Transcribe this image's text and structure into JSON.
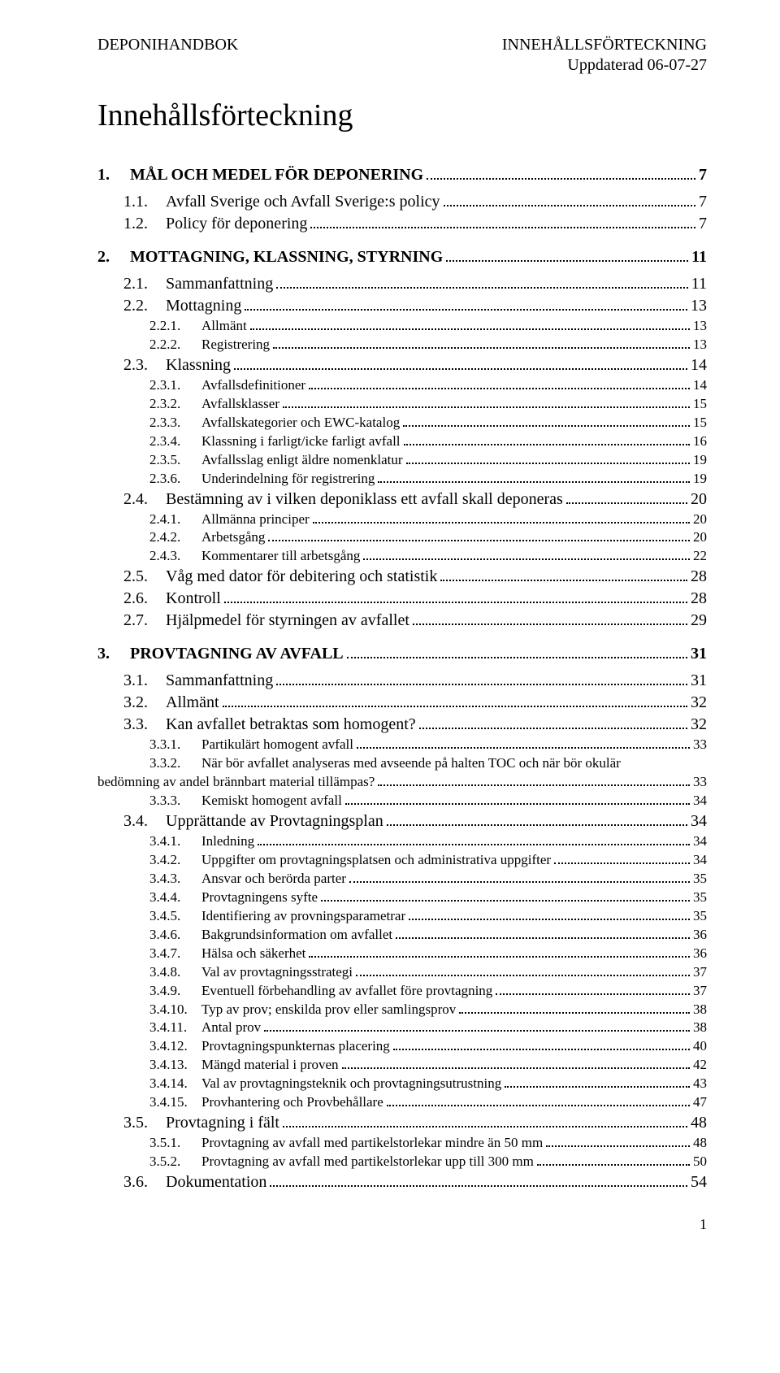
{
  "header": {
    "left": "DEPONIHANDBOK",
    "right": "INNEHÅLLSFÖRTECKNING",
    "sub": "Uppdaterad 06-07-27"
  },
  "title": "Innehållsförteckning",
  "footerPage": "1",
  "toc": [
    {
      "level": 1,
      "num": "1.",
      "text": "MÅL OCH MEDEL FÖR DEPONERING",
      "page": "7"
    },
    {
      "level": 2,
      "num": "1.1.",
      "text": "Avfall Sverige och Avfall Sverige:s policy",
      "page": "7"
    },
    {
      "level": 2,
      "num": "1.2.",
      "text": "Policy för deponering",
      "page": "7"
    },
    {
      "level": 1,
      "num": "2.",
      "text": "MOTTAGNING, KLASSNING, STYRNING",
      "page": "11"
    },
    {
      "level": 2,
      "num": "2.1.",
      "text": "Sammanfattning",
      "page": "11"
    },
    {
      "level": 2,
      "num": "2.2.",
      "text": "Mottagning",
      "page": "13"
    },
    {
      "level": 3,
      "num": "2.2.1.",
      "text": "Allmänt",
      "page": "13"
    },
    {
      "level": 3,
      "num": "2.2.2.",
      "text": "Registrering",
      "page": "13"
    },
    {
      "level": 2,
      "num": "2.3.",
      "text": "Klassning",
      "page": "14"
    },
    {
      "level": 3,
      "num": "2.3.1.",
      "text": "Avfallsdefinitioner",
      "page": "14"
    },
    {
      "level": 3,
      "num": "2.3.2.",
      "text": "Avfallsklasser",
      "page": "15"
    },
    {
      "level": 3,
      "num": "2.3.3.",
      "text": "Avfallskategorier och EWC-katalog",
      "page": "15"
    },
    {
      "level": 3,
      "num": "2.3.4.",
      "text": "Klassning i farligt/icke farligt avfall",
      "page": "16"
    },
    {
      "level": 3,
      "num": "2.3.5.",
      "text": "Avfallsslag enligt äldre nomenklatur",
      "page": "19"
    },
    {
      "level": 3,
      "num": "2.3.6.",
      "text": "Underindelning för registrering",
      "page": "19"
    },
    {
      "level": 2,
      "num": "2.4.",
      "text": "Bestämning av i vilken deponiklass ett avfall skall deponeras",
      "page": "20"
    },
    {
      "level": 3,
      "num": "2.4.1.",
      "text": "Allmänna principer",
      "page": "20"
    },
    {
      "level": 3,
      "num": "2.4.2.",
      "text": "Arbetsgång",
      "page": "20"
    },
    {
      "level": 3,
      "num": "2.4.3.",
      "text": "Kommentarer till arbetsgång",
      "page": "22"
    },
    {
      "level": 2,
      "num": "2.5.",
      "text": "Våg med dator för debitering och statistik",
      "page": "28"
    },
    {
      "level": 2,
      "num": "2.6.",
      "text": "Kontroll",
      "page": "28"
    },
    {
      "level": 2,
      "num": "2.7.",
      "text": "Hjälpmedel för styrningen av avfallet",
      "page": "29"
    },
    {
      "level": 1,
      "num": "3.",
      "text": "PROVTAGNING AV AVFALL",
      "page": "31"
    },
    {
      "level": 2,
      "num": "3.1.",
      "text": "Sammanfattning",
      "page": "31"
    },
    {
      "level": 2,
      "num": "3.2.",
      "text": "Allmänt",
      "page": "32"
    },
    {
      "level": 2,
      "num": "3.3.",
      "text": "Kan avfallet betraktas som homogent?",
      "page": "32"
    },
    {
      "level": 3,
      "num": "3.3.1.",
      "text": "Partikulärt homogent avfall",
      "page": "33"
    },
    {
      "level": 3,
      "num": "3.3.2.",
      "text": "När bör avfallet analyseras med avseende på halten TOC och när bör okulär",
      "text2": "bedömning av andel brännbart material tillämpas?",
      "page": "33",
      "wrap": true
    },
    {
      "level": 3,
      "num": "3.3.3.",
      "text": "Kemiskt homogent avfall",
      "page": "34"
    },
    {
      "level": 2,
      "num": "3.4.",
      "text": "Upprättande av Provtagningsplan",
      "page": "34"
    },
    {
      "level": 3,
      "num": "3.4.1.",
      "text": "Inledning",
      "page": "34"
    },
    {
      "level": 3,
      "num": "3.4.2.",
      "text": "Uppgifter om provtagningsplatsen och administrativa uppgifter",
      "page": "34"
    },
    {
      "level": 3,
      "num": "3.4.3.",
      "text": "Ansvar och berörda parter",
      "page": "35"
    },
    {
      "level": 3,
      "num": "3.4.4.",
      "text": "Provtagningens syfte",
      "page": "35"
    },
    {
      "level": 3,
      "num": "3.4.5.",
      "text": "Identifiering av provningsparametrar",
      "page": "35"
    },
    {
      "level": 3,
      "num": "3.4.6.",
      "text": "Bakgrundsinformation om avfallet",
      "page": "36"
    },
    {
      "level": 3,
      "num": "3.4.7.",
      "text": "Hälsa och säkerhet",
      "page": "36"
    },
    {
      "level": 3,
      "num": "3.4.8.",
      "text": "Val av provtagningsstrategi",
      "page": "37"
    },
    {
      "level": 3,
      "num": "3.4.9.",
      "text": "Eventuell förbehandling av avfallet före provtagning",
      "page": "37"
    },
    {
      "level": 3,
      "num": "3.4.10.",
      "text": "Typ av prov; enskilda prov eller samlingsprov",
      "page": "38"
    },
    {
      "level": 3,
      "num": "3.4.11.",
      "text": "Antal prov",
      "page": "38"
    },
    {
      "level": 3,
      "num": "3.4.12.",
      "text": "Provtagningspunkternas placering",
      "page": "40"
    },
    {
      "level": 3,
      "num": "3.4.13.",
      "text": "Mängd material i proven",
      "page": "42"
    },
    {
      "level": 3,
      "num": "3.4.14.",
      "text": "Val av provtagningsteknik och provtagningsutrustning",
      "page": "43"
    },
    {
      "level": 3,
      "num": "3.4.15.",
      "text": "Provhantering och Provbehållare",
      "page": "47"
    },
    {
      "level": 2,
      "num": "3.5.",
      "text": "Provtagning i fält",
      "page": "48"
    },
    {
      "level": 3,
      "num": "3.5.1.",
      "text": "Provtagning av avfall med partikelstorlekar mindre än 50 mm",
      "page": "48"
    },
    {
      "level": 3,
      "num": "3.5.2.",
      "text": "Provtagning av avfall med partikelstorlekar upp till 300 mm",
      "page": "50"
    },
    {
      "level": 2,
      "num": "3.6.",
      "text": "Dokumentation",
      "page": "54"
    }
  ]
}
